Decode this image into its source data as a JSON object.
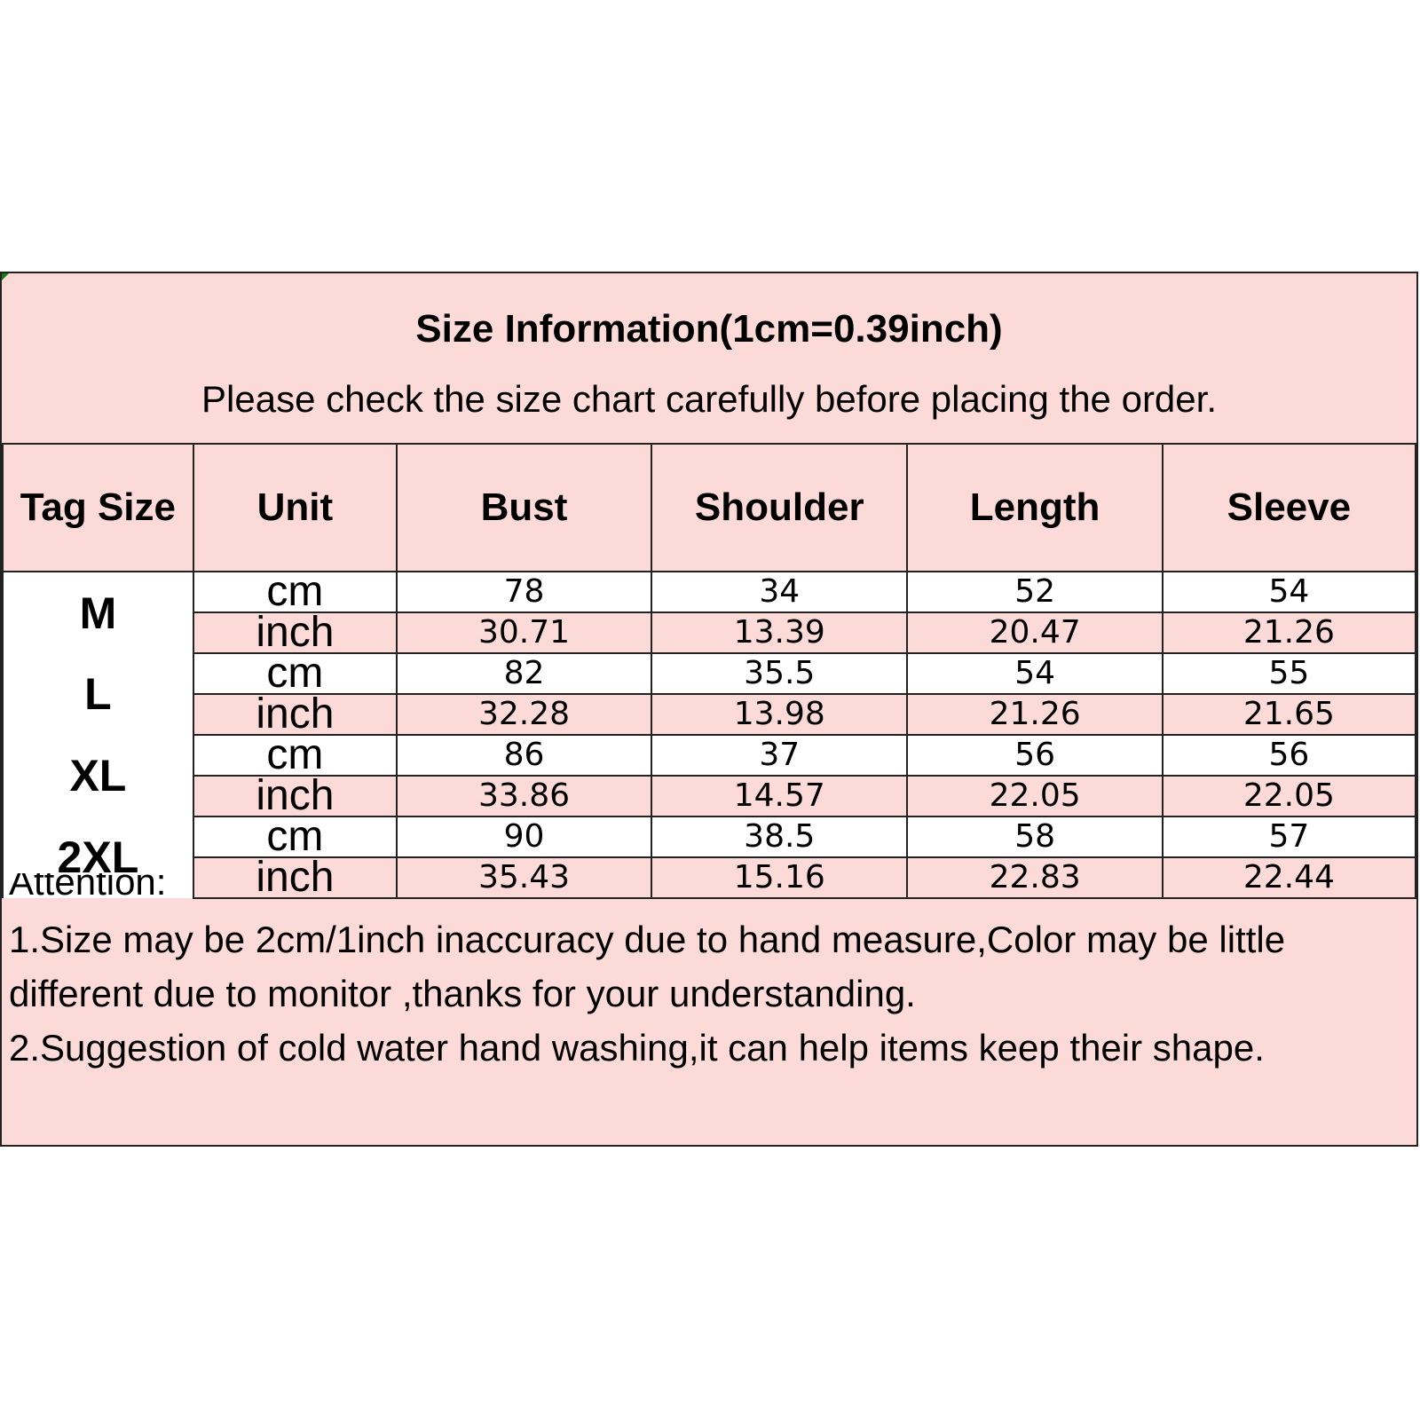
{
  "title": "Size Information(1cm=0.39inch)",
  "subtitle": "Please check the size chart carefully before placing the order.",
  "columns": [
    "Tag Size",
    "Unit",
    "Bust",
    "Shoulder",
    "Length",
    "Sleeve"
  ],
  "rows": [
    {
      "size": "M",
      "cm": {
        "unit": "cm",
        "values": [
          "78",
          "34",
          "52",
          "54"
        ]
      },
      "inch": {
        "unit": "inch",
        "values": [
          "30.71",
          "13.39",
          "20.47",
          "21.26"
        ]
      }
    },
    {
      "size": "L",
      "cm": {
        "unit": "cm",
        "values": [
          "82",
          "35.5",
          "54",
          "55"
        ]
      },
      "inch": {
        "unit": "inch",
        "values": [
          "32.28",
          "13.98",
          "21.26",
          "21.65"
        ]
      }
    },
    {
      "size": "XL",
      "cm": {
        "unit": "cm",
        "values": [
          "86",
          "37",
          "56",
          "56"
        ]
      },
      "inch": {
        "unit": "inch",
        "values": [
          "33.86",
          "14.57",
          "22.05",
          "22.05"
        ]
      }
    },
    {
      "size": "2XL",
      "cm": {
        "unit": "cm",
        "values": [
          "90",
          "38.5",
          "58",
          "57"
        ]
      },
      "inch": {
        "unit": "inch",
        "values": [
          "35.43",
          "15.16",
          "22.83",
          "22.44"
        ]
      }
    }
  ],
  "attention_label": "Attention:",
  "notes": [
    "1.Size may be 2cm/1inch inaccuracy due to hand measure,Color may be little different due to monitor ,thanks for your understanding.",
    "2.Suggestion of cold water hand washing,it can help items keep their shape."
  ],
  "colors": {
    "header_bg": "#fbdad8",
    "row_alt_bg": "#ffffff",
    "border": "#222222",
    "corner_mark": "#1a7a1a"
  }
}
